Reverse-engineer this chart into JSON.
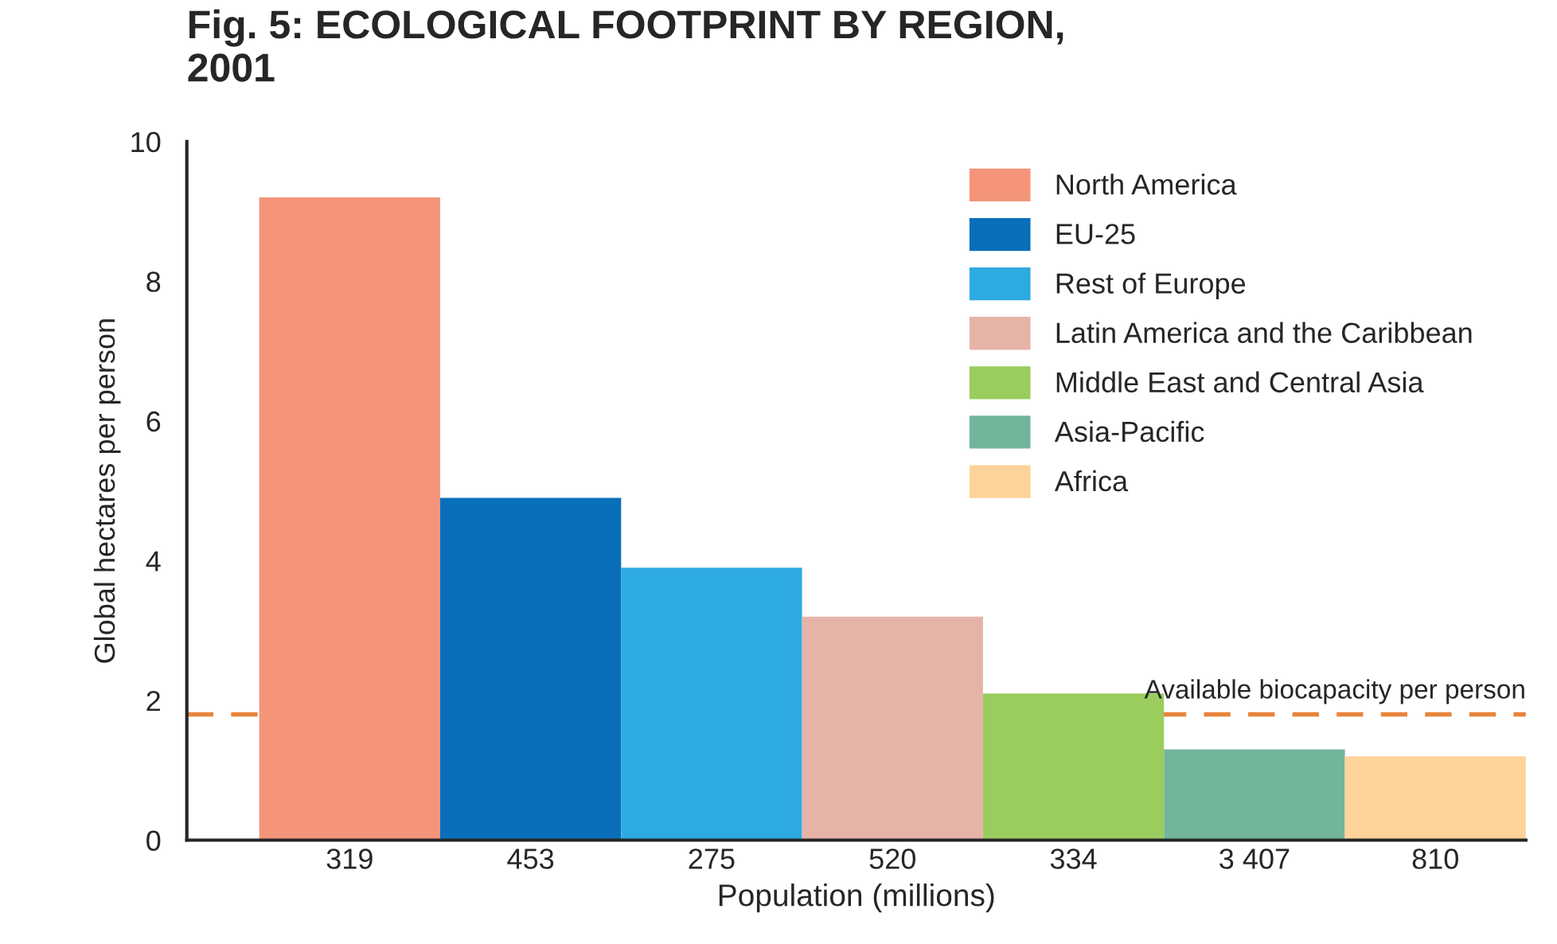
{
  "chart_data": {
    "type": "bar",
    "title": "Fig. 5: ECOLOGICAL FOOTPRINT BY REGION,\n2001",
    "xlabel": "Population (millions)",
    "ylabel": "Global hectares per person",
    "categories": [
      "319",
      "453",
      "275",
      "520",
      "334",
      "3 407",
      "810"
    ],
    "series": [
      {
        "name": "North America",
        "color": "#f4957a",
        "values": [
          9.2,
          null,
          null,
          null,
          null,
          null,
          null
        ]
      },
      {
        "name": "EU-25",
        "color": "#0a6fba",
        "values": [
          null,
          4.9,
          null,
          null,
          null,
          null,
          null
        ]
      },
      {
        "name": "Rest of Europe",
        "color": "#2eaae2",
        "values": [
          null,
          null,
          3.9,
          null,
          null,
          null,
          null
        ]
      },
      {
        "name": "Latin America and the Caribbean",
        "color": "#e6b3a8",
        "values": [
          null,
          null,
          null,
          3.2,
          null,
          null,
          null
        ]
      },
      {
        "name": "Middle East and Central Asia",
        "color": "#9bcc5e",
        "values": [
          null,
          null,
          null,
          null,
          2.1,
          null,
          null
        ]
      },
      {
        "name": "Asia-Pacific",
        "color": "#72b59a",
        "values": [
          null,
          null,
          null,
          null,
          null,
          1.3,
          null
        ]
      },
      {
        "name": "Africa",
        "color": "#fdd39a",
        "values": [
          null,
          null,
          null,
          null,
          null,
          null,
          1.2
        ]
      }
    ],
    "ylim": [
      0,
      10
    ],
    "yticks": [
      0,
      2,
      4,
      6,
      8,
      10
    ],
    "grid": false,
    "legend": "top right",
    "ref_lines": [
      {
        "axis": "y",
        "value": 1.8,
        "label": "Available biocapacity per person",
        "color": "#e8843a",
        "line_style": "dashed"
      }
    ]
  }
}
